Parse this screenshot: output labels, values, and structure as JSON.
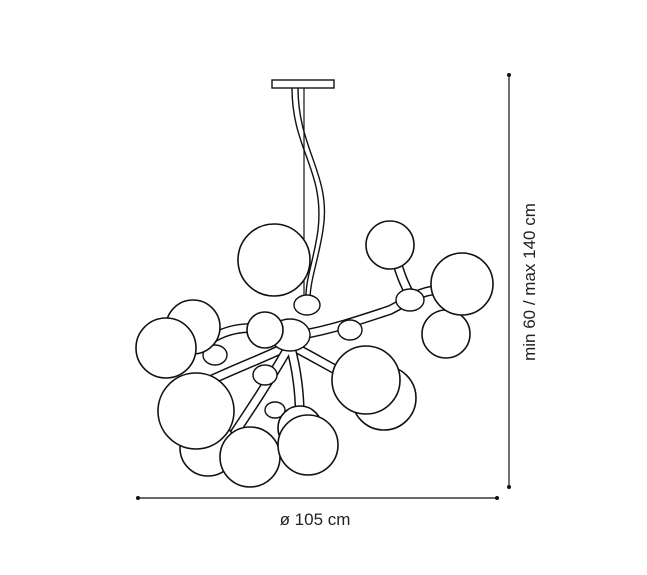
{
  "dimensions": {
    "width": "ø 105 cm",
    "height": "min 60 / max 140 cm"
  }
}
